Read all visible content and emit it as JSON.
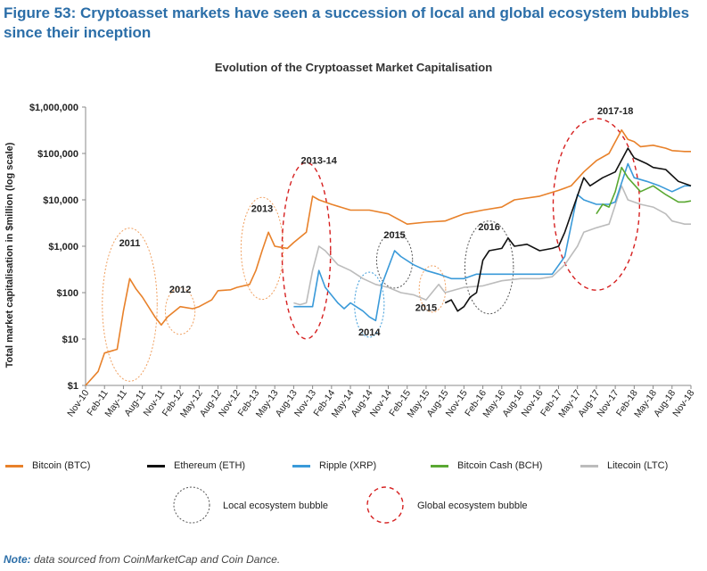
{
  "figure_title": "Figure 53: Cryptoasset markets have seen a succession of local and global ecosystem bubbles since their inception",
  "note_label": "Note:",
  "note_text": " data sourced from CoinMarketCap and Coin Dance.",
  "colors": {
    "btc": "#e8812a",
    "eth": "#111111",
    "xrp": "#3a9ad9",
    "bch": "#5aa832",
    "ltc": "#bcbcbc",
    "local_bubble": "#555555",
    "global_bubble": "#d62020"
  },
  "chart_data": {
    "type": "line",
    "title": "Evolution of the Cryptoasset Market Capitalisation",
    "ylabel": "Total market capitalisation in $million (log scale)",
    "yscale": "log",
    "ylim": [
      1,
      1000000
    ],
    "yticks": [
      {
        "v": 1,
        "label": "$1"
      },
      {
        "v": 10,
        "label": "$10"
      },
      {
        "v": 100,
        "label": "$100"
      },
      {
        "v": 1000,
        "label": "$1,000"
      },
      {
        "v": 10000,
        "label": "$10,000"
      },
      {
        "v": 100000,
        "label": "$100,000"
      },
      {
        "v": 1000000,
        "label": "$1,000,000"
      }
    ],
    "xticks": [
      "Nov-10",
      "Feb-11",
      "May-11",
      "Aug-11",
      "Nov-11",
      "Feb-12",
      "May-12",
      "Aug-12",
      "Nov-12",
      "Feb-13",
      "May-13",
      "Aug-13",
      "Nov-13",
      "Feb-14",
      "May-14",
      "Aug-14",
      "Nov-14",
      "Feb-15",
      "May-15",
      "Aug-15",
      "Nov-15",
      "Feb-16",
      "May-16",
      "Aug-16",
      "Nov-16",
      "Feb-17",
      "May-17",
      "Aug-17",
      "Nov-17",
      "Feb-18",
      "May-18",
      "Aug-18",
      "Nov-18"
    ],
    "legend_placement": "bottom",
    "series": [
      {
        "key": "btc",
        "name": "Bitcoin (BTC)",
        "points": [
          [
            "Nov-10",
            1
          ],
          [
            "Jan-11",
            2
          ],
          [
            "Feb-11",
            5
          ],
          [
            "Apr-11",
            6
          ],
          [
            "May-11",
            40
          ],
          [
            "Jun-11",
            200
          ],
          [
            "Jul-11",
            120
          ],
          [
            "Aug-11",
            80
          ],
          [
            "Oct-11",
            30
          ],
          [
            "Nov-11",
            20
          ],
          [
            "Dec-11",
            30
          ],
          [
            "Feb-12",
            50
          ],
          [
            "Apr-12",
            45
          ],
          [
            "May-12",
            50
          ],
          [
            "Jul-12",
            70
          ],
          [
            "Aug-12",
            110
          ],
          [
            "Oct-12",
            115
          ],
          [
            "Nov-12",
            130
          ],
          [
            "Jan-13",
            150
          ],
          [
            "Feb-13",
            300
          ],
          [
            "Mar-13",
            800
          ],
          [
            "Apr-13",
            2000
          ],
          [
            "May-13",
            1000
          ],
          [
            "Jul-13",
            900
          ],
          [
            "Aug-13",
            1200
          ],
          [
            "Oct-13",
            2000
          ],
          [
            "Nov-13",
            12000
          ],
          [
            "Dec-13",
            10000
          ],
          [
            "Feb-14",
            8000
          ],
          [
            "May-14",
            6000
          ],
          [
            "Aug-14",
            6000
          ],
          [
            "Nov-14",
            5000
          ],
          [
            "Feb-15",
            3000
          ],
          [
            "May-15",
            3300
          ],
          [
            "Aug-15",
            3500
          ],
          [
            "Nov-15",
            5000
          ],
          [
            "Feb-16",
            6000
          ],
          [
            "May-16",
            7000
          ],
          [
            "Jul-16",
            10000
          ],
          [
            "Nov-16",
            12000
          ],
          [
            "Feb-17",
            16000
          ],
          [
            "Apr-17",
            20000
          ],
          [
            "Jun-17",
            40000
          ],
          [
            "Aug-17",
            70000
          ],
          [
            "Oct-17",
            100000
          ],
          [
            "Dec-17",
            320000
          ],
          [
            "Jan-18",
            200000
          ],
          [
            "Feb-18",
            180000
          ],
          [
            "Mar-18",
            140000
          ],
          [
            "May-18",
            150000
          ],
          [
            "Jul-18",
            130000
          ],
          [
            "Aug-18",
            115000
          ],
          [
            "Oct-18",
            110000
          ],
          [
            "Nov-18",
            110000
          ]
        ]
      },
      {
        "key": "eth",
        "name": "Ethereum (ETH)",
        "points": [
          [
            "Aug-15",
            60
          ],
          [
            "Sep-15",
            70
          ],
          [
            "Oct-15",
            40
          ],
          [
            "Nov-15",
            50
          ],
          [
            "Dec-15",
            80
          ],
          [
            "Jan-16",
            100
          ],
          [
            "Feb-16",
            500
          ],
          [
            "Mar-16",
            800
          ],
          [
            "May-16",
            900
          ],
          [
            "Jun-16",
            1500
          ],
          [
            "Jul-16",
            1000
          ],
          [
            "Sep-16",
            1100
          ],
          [
            "Nov-16",
            800
          ],
          [
            "Jan-17",
            900
          ],
          [
            "Feb-17",
            1000
          ],
          [
            "Mar-17",
            2000
          ],
          [
            "Apr-17",
            5000
          ],
          [
            "Jun-17",
            30000
          ],
          [
            "Jul-17",
            20000
          ],
          [
            "Sep-17",
            30000
          ],
          [
            "Nov-17",
            40000
          ],
          [
            "Jan-18",
            130000
          ],
          [
            "Feb-18",
            80000
          ],
          [
            "Apr-18",
            60000
          ],
          [
            "May-18",
            50000
          ],
          [
            "Jul-18",
            45000
          ],
          [
            "Sep-18",
            25000
          ],
          [
            "Nov-18",
            20000
          ]
        ]
      },
      {
        "key": "xrp",
        "name": "Ripple (XRP)",
        "points": [
          [
            "Aug-13",
            50
          ],
          [
            "Oct-13",
            50
          ],
          [
            "Nov-13",
            50
          ],
          [
            "Dec-13",
            300
          ],
          [
            "Jan-14",
            130
          ],
          [
            "Mar-14",
            60
          ],
          [
            "Apr-14",
            45
          ],
          [
            "May-14",
            60
          ],
          [
            "Jul-14",
            40
          ],
          [
            "Aug-14",
            30
          ],
          [
            "Sep-14",
            25
          ],
          [
            "Oct-14",
            150
          ],
          [
            "Dec-14",
            800
          ],
          [
            "Jan-15",
            600
          ],
          [
            "Mar-15",
            400
          ],
          [
            "May-15",
            300
          ],
          [
            "Jul-15",
            250
          ],
          [
            "Sep-15",
            200
          ],
          [
            "Nov-15",
            200
          ],
          [
            "Jan-16",
            250
          ],
          [
            "Mar-16",
            250
          ],
          [
            "May-16",
            250
          ],
          [
            "Jul-16",
            250
          ],
          [
            "Sep-16",
            250
          ],
          [
            "Nov-16",
            250
          ],
          [
            "Jan-17",
            250
          ],
          [
            "Mar-17",
            600
          ],
          [
            "May-17",
            13000
          ],
          [
            "Jun-17",
            10000
          ],
          [
            "Aug-17",
            8000
          ],
          [
            "Oct-17",
            8000
          ],
          [
            "Nov-17",
            9000
          ],
          [
            "Jan-18",
            60000
          ],
          [
            "Feb-18",
            30000
          ],
          [
            "Apr-18",
            25000
          ],
          [
            "Jun-18",
            20000
          ],
          [
            "Aug-18",
            15000
          ],
          [
            "Oct-18",
            20000
          ],
          [
            "Nov-18",
            20000
          ]
        ]
      },
      {
        "key": "bch",
        "name": "Bitcoin Cash (BCH)",
        "points": [
          [
            "Aug-17",
            5000
          ],
          [
            "Sep-17",
            8000
          ],
          [
            "Oct-17",
            7000
          ],
          [
            "Nov-17",
            15000
          ],
          [
            "Dec-17",
            50000
          ],
          [
            "Jan-18",
            30000
          ],
          [
            "Mar-18",
            15000
          ],
          [
            "May-18",
            20000
          ],
          [
            "Jul-18",
            13000
          ],
          [
            "Sep-18",
            9000
          ],
          [
            "Oct-18",
            9000
          ],
          [
            "Nov-18",
            9500
          ]
        ]
      },
      {
        "key": "ltc",
        "name": "Litecoin (LTC)",
        "points": [
          [
            "Aug-13",
            60
          ],
          [
            "Sep-13",
            55
          ],
          [
            "Oct-13",
            60
          ],
          [
            "Nov-13",
            300
          ],
          [
            "Dec-13",
            1000
          ],
          [
            "Jan-14",
            800
          ],
          [
            "Mar-14",
            400
          ],
          [
            "May-14",
            300
          ],
          [
            "Jul-14",
            200
          ],
          [
            "Sep-14",
            150
          ],
          [
            "Nov-14",
            130
          ],
          [
            "Jan-15",
            100
          ],
          [
            "Mar-15",
            90
          ],
          [
            "May-15",
            70
          ],
          [
            "Jul-15",
            150
          ],
          [
            "Aug-15",
            100
          ],
          [
            "Nov-15",
            130
          ],
          [
            "Feb-16",
            140
          ],
          [
            "May-16",
            180
          ],
          [
            "Aug-16",
            200
          ],
          [
            "Nov-16",
            200
          ],
          [
            "Jan-17",
            220
          ],
          [
            "Mar-17",
            400
          ],
          [
            "May-17",
            1000
          ],
          [
            "Jun-17",
            2000
          ],
          [
            "Aug-17",
            2500
          ],
          [
            "Oct-17",
            3000
          ],
          [
            "Dec-17",
            20000
          ],
          [
            "Jan-18",
            10000
          ],
          [
            "Mar-18",
            8000
          ],
          [
            "May-18",
            7000
          ],
          [
            "Jul-18",
            5000
          ],
          [
            "Aug-18",
            3500
          ],
          [
            "Oct-18",
            3000
          ],
          [
            "Nov-18",
            3000
          ]
        ]
      }
    ],
    "annotations": [
      {
        "text": "2011",
        "x": "Jun-11",
        "y": 1000,
        "kind": "local",
        "ellipse": {
          "x": "Jun-11",
          "y": 55,
          "w_months": 7,
          "decades": 3.3
        }
      },
      {
        "text": "2012",
        "x": "Feb-12",
        "y": 100,
        "kind": "local",
        "ellipse": {
          "x": "Feb-12",
          "y": 40,
          "w_months": 3,
          "decades": 1.0
        }
      },
      {
        "text": "2013",
        "x": "Mar-13",
        "y": 5500,
        "kind": "local",
        "ellipse": {
          "x": "Mar-13",
          "y": 900,
          "w_months": 5,
          "decades": 2.2
        }
      },
      {
        "text": "2013-14",
        "x": "Dec-13",
        "y": 60000,
        "kind": "global",
        "ellipse": {
          "x": "Oct-13",
          "y": 800,
          "w_months": 6,
          "decades": 3.8
        }
      },
      {
        "text": "2014",
        "x": "Aug-14",
        "y": 12,
        "kind": "local",
        "ellipse": {
          "x": "Aug-14",
          "y": 55,
          "w_months": 3,
          "decades": 1.4
        }
      },
      {
        "text": "2015",
        "x": "Dec-14",
        "y": 1500,
        "kind": "local",
        "ellipse": {
          "x": "Dec-14",
          "y": 500,
          "w_months": 4,
          "decades": 1.2
        }
      },
      {
        "text": "2015",
        "x": "May-15",
        "y": 40,
        "kind": "local",
        "ellipse": {
          "x": "Jun-15",
          "y": 120,
          "w_months": 2.5,
          "decades": 1.0
        }
      },
      {
        "text": "2016",
        "x": "Mar-16",
        "y": 2200,
        "kind": "local",
        "ellipse": {
          "x": "Mar-16",
          "y": 350,
          "w_months": 6,
          "decades": 2.0
        }
      },
      {
        "text": "2017-18",
        "x": "Nov-17",
        "y": 700000,
        "kind": "global",
        "ellipse": {
          "x": "Aug-17",
          "y": 8000,
          "w_months": 12,
          "decades": 3.7
        }
      }
    ],
    "legend": [
      {
        "key": "btc",
        "label": "Bitcoin (BTC)"
      },
      {
        "key": "eth",
        "label": "Ethereum (ETH)"
      },
      {
        "key": "xrp",
        "label": "Ripple (XRP)"
      },
      {
        "key": "bch",
        "label": "Bitcoin Cash (BCH)"
      },
      {
        "key": "ltc",
        "label": "Litecoin (LTC)"
      }
    ],
    "bubble_legend": {
      "local": "Local ecosystem bubble",
      "global": "Global ecosystem bubble"
    }
  }
}
